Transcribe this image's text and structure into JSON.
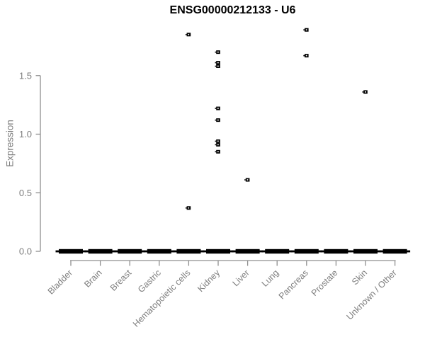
{
  "chart_data": {
    "type": "scatter",
    "subtype": "strip-plot-with-zero-median-bars",
    "title": "ENSG00000212133 - U6",
    "xlabel": "",
    "ylabel": "Expression",
    "categories": [
      "Bladder",
      "Brain",
      "Breast",
      "Gastric",
      "Hematopoietic cells",
      "Kidney",
      "Liver",
      "Lung",
      "Pancreas",
      "Prostate",
      "Skin",
      "Unknown / Other"
    ],
    "yticks": [
      0.0,
      0.5,
      1.0,
      1.5
    ],
    "ytick_labels": [
      "0.0",
      "0.5",
      "1.0",
      "1.5"
    ],
    "ylim": [
      0.0,
      1.95
    ],
    "grid": "off",
    "legend": "none",
    "zero_bar": {
      "value": 0.0,
      "applies_to": "all categories",
      "description": "thick black horizontal bar at expression 0 under every category"
    },
    "series": [
      {
        "name": "Bladder",
        "values": []
      },
      {
        "name": "Brain",
        "values": []
      },
      {
        "name": "Breast",
        "values": []
      },
      {
        "name": "Gastric",
        "values": []
      },
      {
        "name": "Hematopoietic cells",
        "values": [
          1.85,
          0.37
        ]
      },
      {
        "name": "Kidney",
        "values": [
          1.7,
          1.61,
          1.58,
          1.22,
          1.12,
          0.94,
          0.91,
          0.85
        ]
      },
      {
        "name": "Liver",
        "values": [
          0.61
        ]
      },
      {
        "name": "Lung",
        "values": []
      },
      {
        "name": "Pancreas",
        "values": [
          1.89,
          1.67
        ]
      },
      {
        "name": "Prostate",
        "values": []
      },
      {
        "name": "Skin",
        "values": [
          1.36
        ]
      },
      {
        "name": "Unknown / Other",
        "values": []
      }
    ],
    "marker": "small black square with white center notch",
    "colors": {
      "points": "#000000",
      "zero_bar": "#000000",
      "axis_line": "#8f8f8f",
      "tick_text": "#7e7e7e",
      "title_text": "#000000",
      "background": "#ffffff"
    }
  }
}
